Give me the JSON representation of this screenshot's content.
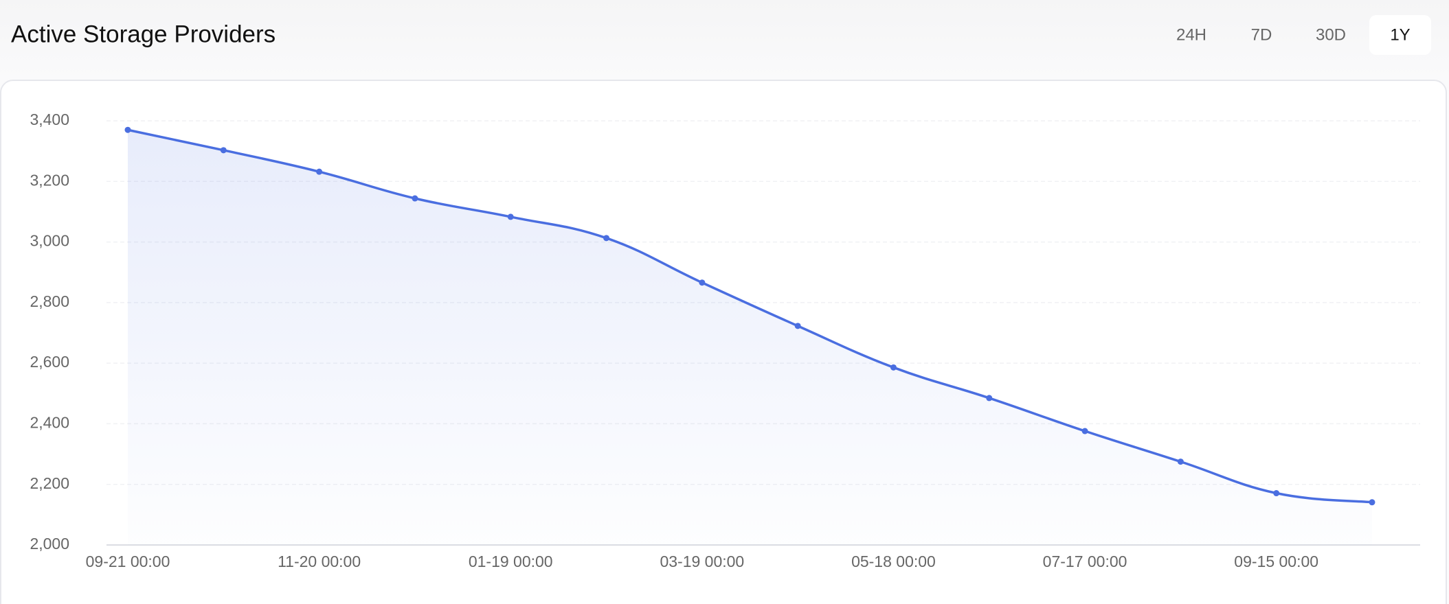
{
  "chart_data": {
    "type": "line",
    "title": "Active Storage Providers",
    "range_buttons": [
      "24H",
      "7D",
      "30D",
      "1Y"
    ],
    "selected_range": 3,
    "categories": [
      "09-21 00:00",
      null,
      "11-20 00:00",
      null,
      "01-19 00:00",
      null,
      "03-19 00:00",
      null,
      "05-18 00:00",
      null,
      "07-17 00:00",
      null,
      "09-15 00:00",
      null
    ],
    "values": [
      3370,
      3303,
      3232,
      3144,
      3083,
      3013,
      2866,
      2723,
      2586,
      2485,
      2376,
      2275,
      2171,
      2141
    ],
    "color": "#4a6ee0",
    "area": true,
    "ylim": [
      2000,
      3400
    ],
    "yticks": [
      {
        "value": 2000,
        "label": "2,000"
      },
      {
        "value": 2200,
        "label": "2,200"
      },
      {
        "value": 2400,
        "label": "2,400"
      },
      {
        "value": 2600,
        "label": "2,600"
      },
      {
        "value": 2800,
        "label": "2,800"
      },
      {
        "value": 3000,
        "label": "3,000"
      },
      {
        "value": 3200,
        "label": "3,200"
      },
      {
        "value": 3400,
        "label": "3,400"
      }
    ],
    "grid": true
  }
}
